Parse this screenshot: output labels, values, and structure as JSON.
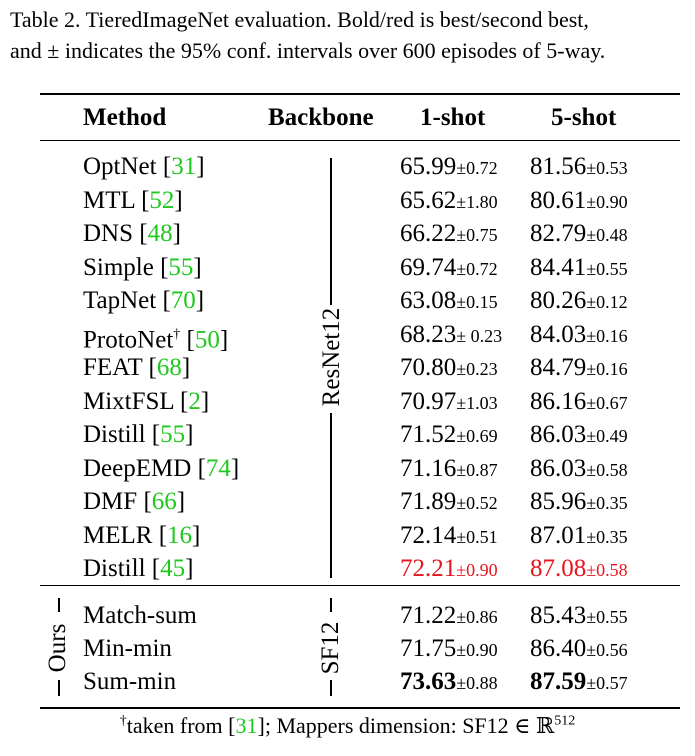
{
  "caption": {
    "line1": "Table 2. TieredImageNet evaluation. Bold/red is best/second best,",
    "line2": "and ± indicates the 95% conf. intervals over 600 episodes of 5-way."
  },
  "headers": {
    "method": "Method",
    "backbone": "Backbone",
    "one_shot": "1-shot",
    "five_shot": "5-shot"
  },
  "backbone_groups": {
    "resnet": "ResNet12",
    "sf": "SF12",
    "ours": "Ours"
  },
  "rows": [
    {
      "method": "OptNet",
      "ref": "31",
      "sup": "",
      "s1": "65.99",
      "c1": "±0.72",
      "s5": "81.56",
      "c5": "±0.53",
      "style": ""
    },
    {
      "method": "MTL",
      "ref": "52",
      "sup": "",
      "s1": "65.62",
      "c1": "±1.80",
      "s5": "80.61",
      "c5": "±0.90",
      "style": ""
    },
    {
      "method": "DNS",
      "ref": "48",
      "sup": "",
      "s1": "66.22",
      "c1": "±0.75",
      "s5": "82.79",
      "c5": "±0.48",
      "style": ""
    },
    {
      "method": "Simple",
      "ref": "55",
      "sup": "",
      "s1": "69.74",
      "c1": "±0.72",
      "s5": "84.41",
      "c5": "±0.55",
      "style": ""
    },
    {
      "method": "TapNet",
      "ref": "70",
      "sup": "",
      "s1": "63.08",
      "c1": "±0.15",
      "s5": "80.26",
      "c5": "±0.12",
      "style": ""
    },
    {
      "method": "ProtoNet",
      "ref": "50",
      "sup": "†",
      "s1": "68.23",
      "c1": "± 0.23",
      "s5": "84.03",
      "c5": "±0.16",
      "style": ""
    },
    {
      "method": "FEAT",
      "ref": "68",
      "sup": "",
      "s1": "70.80",
      "c1": "±0.23",
      "s5": "84.79",
      "c5": "±0.16",
      "style": ""
    },
    {
      "method": "MixtFSL",
      "ref": "2",
      "sup": "",
      "s1": "70.97",
      "c1": "±1.03",
      "s5": "86.16",
      "c5": "±0.67",
      "style": ""
    },
    {
      "method": "Distill",
      "ref": "55",
      "sup": "",
      "s1": "71.52",
      "c1": "±0.69",
      "s5": "86.03",
      "c5": "±0.49",
      "style": ""
    },
    {
      "method": "DeepEMD",
      "ref": "74",
      "sup": "",
      "s1": "71.16",
      "c1": "±0.87",
      "s5": "86.03",
      "c5": "±0.58",
      "style": ""
    },
    {
      "method": "DMF",
      "ref": "66",
      "sup": "",
      "s1": "71.89",
      "c1": "±0.52",
      "s5": "85.96",
      "c5": "±0.35",
      "style": ""
    },
    {
      "method": "MELR",
      "ref": "16",
      "sup": "",
      "s1": "72.14",
      "c1": "±0.51",
      "s5": "87.01",
      "c5": "±0.35",
      "style": ""
    },
    {
      "method": "Distill",
      "ref": "45",
      "sup": "",
      "s1": "72.21",
      "c1": "±0.90",
      "s5": "87.08",
      "c5": "±0.58",
      "style": "red"
    },
    {
      "method": "Match-sum",
      "ref": "",
      "sup": "",
      "s1": "71.22",
      "c1": "±0.86",
      "s5": "85.43",
      "c5": "±0.55",
      "style": ""
    },
    {
      "method": "Min-min",
      "ref": "",
      "sup": "",
      "s1": "71.75",
      "c1": "±0.90",
      "s5": "86.40",
      "c5": "±0.56",
      "style": ""
    },
    {
      "method": "Sum-min",
      "ref": "",
      "sup": "",
      "s1": "73.63",
      "c1": "±0.88",
      "s5": "87.59",
      "c5": "±0.57",
      "style": "bold"
    }
  ],
  "footer": {
    "dagger": "†",
    "text1": "taken from [",
    "ref": "31",
    "text2": "]; Mappers dimension: SF12 ∈ ℝ",
    "sup": "512"
  }
}
